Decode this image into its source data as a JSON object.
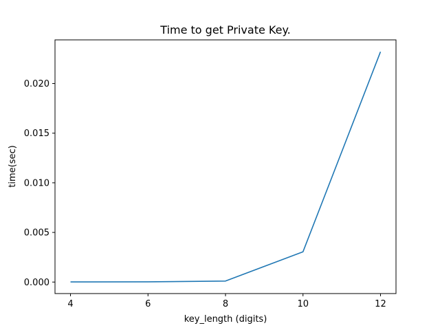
{
  "chart_data": {
    "type": "line",
    "title": "Time to get Private Key.",
    "xlabel": "key_length (digits)",
    "ylabel": "time(sec)",
    "xlim": [
      3.6,
      12.4
    ],
    "ylim": [
      -0.00116,
      0.0244
    ],
    "xticks": [
      4,
      6,
      8,
      10,
      12
    ],
    "xtick_labels": [
      "4",
      "6",
      "8",
      "10",
      "12"
    ],
    "yticks": [
      0.0,
      0.005,
      0.01,
      0.015,
      0.02
    ],
    "ytick_labels": [
      "0.000",
      "0.005",
      "0.010",
      "0.015",
      "0.020"
    ],
    "grid": false,
    "series": [
      {
        "color": "#1f77b4",
        "x": [
          4,
          6,
          8,
          10,
          12
        ],
        "y": [
          1e-05,
          2e-05,
          0.0001,
          0.00305,
          0.0232
        ]
      }
    ]
  }
}
